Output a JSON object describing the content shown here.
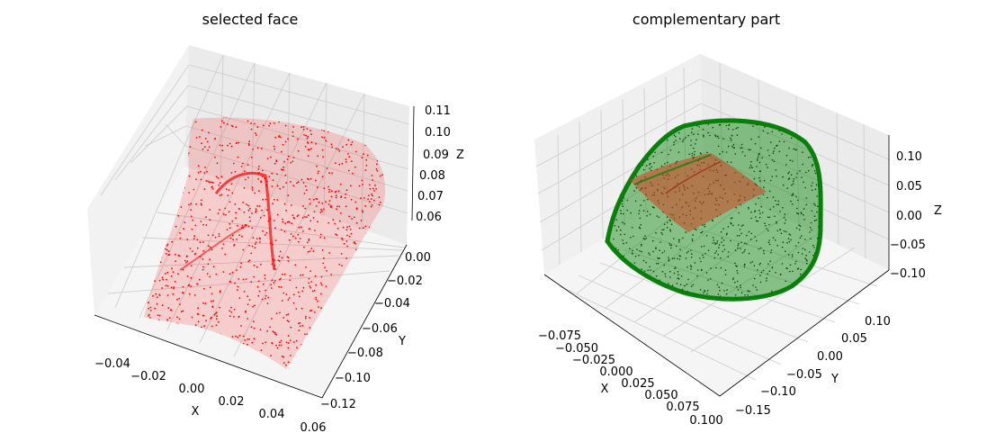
{
  "chart_data": [
    {
      "type": "scatter",
      "projection": "3d",
      "title": "selected face",
      "xlabel": "X",
      "ylabel": "Y",
      "zlabel": "Z",
      "xticks": [
        "−0.04",
        "−0.02",
        "0.00",
        "0.02",
        "0.04",
        "0.06"
      ],
      "yticks": [
        "0.00",
        "−0.02",
        "−0.04",
        "−0.06",
        "−0.08",
        "−0.10",
        "−0.12"
      ],
      "zticks": [
        "0.11",
        "0.10",
        "0.09",
        "0.08",
        "0.07",
        "0.06"
      ],
      "xlim": [
        -0.045,
        0.06
      ],
      "ylim": [
        -0.125,
        0.005
      ],
      "zlim": [
        0.055,
        0.11
      ],
      "series": [
        {
          "color": "#ff0000",
          "marker": "dot",
          "point_count": "dense facial surface point cloud"
        }
      ]
    },
    {
      "type": "scatter",
      "projection": "3d",
      "title": "complementary part",
      "xlabel": "X",
      "ylabel": "Y",
      "zlabel": "Z",
      "xticks": [
        "−0.075",
        "−0.050",
        "−0.025",
        "0.000",
        "0.025",
        "0.050",
        "0.075",
        "0.100"
      ],
      "yticks": [
        "0.10",
        "0.05",
        "0.00",
        "−0.05",
        "−0.10",
        "−0.15"
      ],
      "zticks": [
        "0.10",
        "0.05",
        "0.00",
        "−0.05",
        "−0.10"
      ],
      "xlim": [
        -0.09,
        0.105
      ],
      "ylim": [
        -0.17,
        0.12
      ],
      "zlim": [
        -0.12,
        0.12
      ],
      "series": [
        {
          "color": "#008000",
          "marker": "dot",
          "point_count": "dense head surface point cloud"
        },
        {
          "color": "#ff0000",
          "marker": "dot",
          "point_count": "face region overlay"
        }
      ]
    }
  ]
}
